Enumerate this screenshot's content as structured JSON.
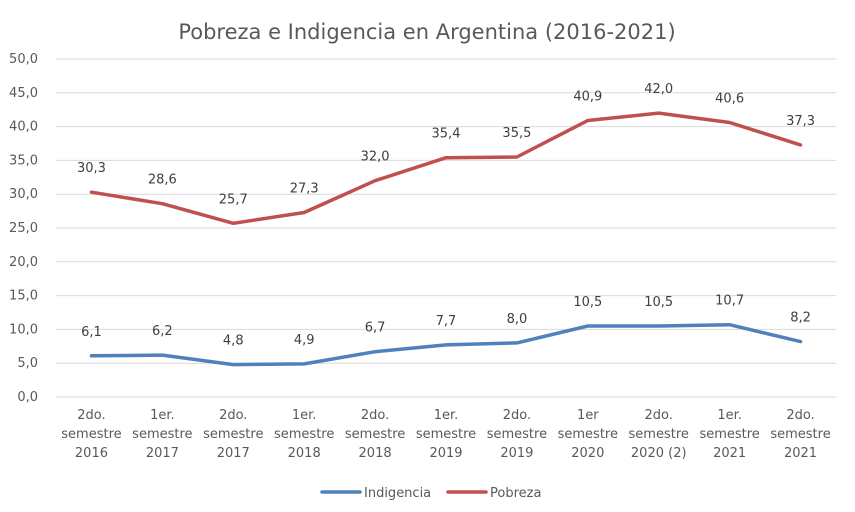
{
  "chart_data": {
    "type": "line",
    "title": "Pobreza e Indigencia en Argentina (2016-2021)",
    "xlabel": "",
    "ylabel": "",
    "ylim": [
      0,
      50
    ],
    "ytick_step": 5,
    "ytick_labels": [
      "0,0",
      "5,0",
      "10,0",
      "15,0",
      "20,0",
      "25,0",
      "30,0",
      "35,0",
      "40,0",
      "45,0",
      "50,0"
    ],
    "grid": true,
    "legend_position": "bottom",
    "categories": [
      [
        "2do.",
        "semestre",
        "2016"
      ],
      [
        "1er.",
        "semestre",
        "2017"
      ],
      [
        "2do.",
        "semestre",
        "2017"
      ],
      [
        "1er.",
        "semestre",
        "2018"
      ],
      [
        "2do.",
        "semestre",
        "2018"
      ],
      [
        "1er.",
        "semestre",
        "2019"
      ],
      [
        "2do.",
        "semestre",
        "2019"
      ],
      [
        "1er",
        "semestre",
        "2020"
      ],
      [
        "2do.",
        "semestre",
        "2020 (2)"
      ],
      [
        "1er.",
        "semestre",
        "2021"
      ],
      [
        "2do.",
        "semestre",
        "2021"
      ]
    ],
    "series": [
      {
        "name": "Indigencia",
        "color": "#4f81bd",
        "values": [
          6.1,
          6.2,
          4.8,
          4.9,
          6.7,
          7.7,
          8.0,
          10.5,
          10.5,
          10.7,
          8.2
        ],
        "labels": [
          "6,1",
          "6,2",
          "4,8",
          "4,9",
          "6,7",
          "7,7",
          "8,0",
          "10,5",
          "10,5",
          "10,7",
          "8,2"
        ]
      },
      {
        "name": "Pobreza",
        "color": "#c0504d",
        "values": [
          30.3,
          28.6,
          25.7,
          27.3,
          32.0,
          35.4,
          35.5,
          40.9,
          42.0,
          40.6,
          37.3
        ],
        "labels": [
          "30,3",
          "28,6",
          "25,7",
          "27,3",
          "32,0",
          "35,4",
          "35,5",
          "40,9",
          "42,0",
          "40,6",
          "37,3"
        ]
      }
    ]
  }
}
